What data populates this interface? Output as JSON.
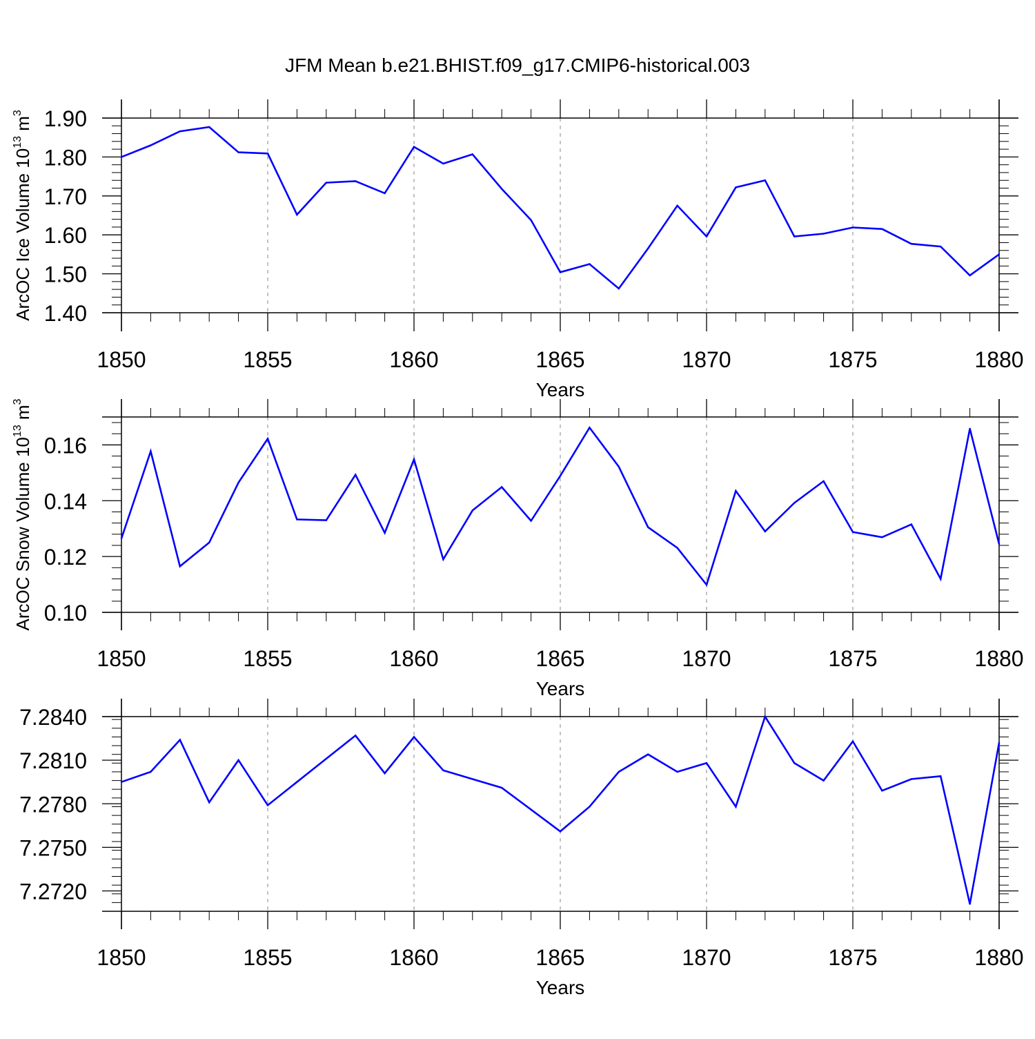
{
  "figure": {
    "title": "JFM Mean b.e21.BHIST.f09_g17.CMIP6-historical.003"
  },
  "colors": {
    "line": "#0000ff",
    "axis": "#000000",
    "grid": "#999999"
  },
  "chart_data": [
    {
      "type": "line",
      "title": "JFM Mean b.e21.BHIST.f09_g17.CMIP6-historical.003",
      "xlabel": "Years",
      "ylabel_main": "ArcOC Ice Volume 10",
      "ylabel_sup": "13",
      "ylabel_unit": " m",
      "ylabel_unit_sup": "3",
      "xlim": [
        1850,
        1880
      ],
      "ylim": [
        1.4,
        1.9
      ],
      "x_ticks": [
        1850,
        1855,
        1860,
        1865,
        1870,
        1875,
        1880
      ],
      "x_tick_labels": [
        "1850",
        "1855",
        "1860",
        "1865",
        "1870",
        "1875",
        "1880"
      ],
      "y_ticks": [
        1.4,
        1.5,
        1.6,
        1.7,
        1.8,
        1.9
      ],
      "y_tick_labels": [
        "1.40",
        "1.50",
        "1.60",
        "1.70",
        "1.80",
        "1.90"
      ],
      "y_minor_step": 0.02,
      "grid": "vertical dashed",
      "x": [
        1850,
        1851,
        1852,
        1853,
        1854,
        1855,
        1856,
        1857,
        1858,
        1859,
        1860,
        1861,
        1862,
        1863,
        1864,
        1865,
        1866,
        1867,
        1868,
        1869,
        1870,
        1871,
        1872,
        1873,
        1874,
        1875,
        1876,
        1877,
        1878,
        1879,
        1880
      ],
      "values": [
        1.8,
        1.83,
        1.866,
        1.877,
        1.812,
        1.809,
        1.652,
        1.734,
        1.738,
        1.707,
        1.826,
        1.783,
        1.807,
        1.718,
        1.638,
        1.504,
        1.525,
        1.462,
        1.565,
        1.675,
        1.596,
        1.722,
        1.74,
        1.596,
        1.603,
        1.619,
        1.615,
        1.577,
        1.57,
        1.496,
        1.55
      ]
    },
    {
      "type": "line",
      "xlabel": "Years",
      "ylabel_main": "ArcOC Snow Volume 10",
      "ylabel_sup": "13",
      "ylabel_unit": " m",
      "ylabel_unit_sup": "3",
      "xlim": [
        1850,
        1880
      ],
      "ylim": [
        0.1,
        0.17
      ],
      "x_ticks": [
        1850,
        1855,
        1860,
        1865,
        1870,
        1875,
        1880
      ],
      "x_tick_labels": [
        "1850",
        "1855",
        "1860",
        "1865",
        "1870",
        "1875",
        "1880"
      ],
      "y_ticks": [
        0.1,
        0.12,
        0.14,
        0.16
      ],
      "y_tick_labels": [
        "0.10",
        "0.12",
        "0.14",
        "0.16"
      ],
      "y_minor_step": 0.004,
      "grid": "vertical dashed",
      "x": [
        1850,
        1851,
        1852,
        1853,
        1854,
        1855,
        1856,
        1857,
        1858,
        1859,
        1860,
        1861,
        1862,
        1863,
        1864,
        1865,
        1866,
        1867,
        1868,
        1869,
        1870,
        1871,
        1872,
        1873,
        1874,
        1875,
        1876,
        1877,
        1878,
        1879,
        1880
      ],
      "values": [
        0.1265,
        0.1577,
        0.1165,
        0.125,
        0.1465,
        0.1622,
        0.1333,
        0.133,
        0.1493,
        0.1285,
        0.1548,
        0.119,
        0.1365,
        0.1449,
        0.1328,
        0.1489,
        0.1662,
        0.1522,
        0.1305,
        0.1231,
        0.1099,
        0.1435,
        0.129,
        0.1392,
        0.147,
        0.1288,
        0.1269,
        0.1315,
        0.112,
        0.1658,
        0.1245
      ]
    },
    {
      "type": "line",
      "xlabel": "Years",
      "xlim": [
        1850,
        1880
      ],
      "ylim": [
        7.2706,
        7.284
      ],
      "x_ticks": [
        1850,
        1855,
        1860,
        1865,
        1870,
        1875,
        1880
      ],
      "x_tick_labels": [
        "1850",
        "1855",
        "1860",
        "1865",
        "1870",
        "1875",
        "1880"
      ],
      "y_ticks": [
        7.272,
        7.275,
        7.278,
        7.281,
        7.284
      ],
      "y_tick_labels": [
        "7.2720",
        "7.2750",
        "7.2780",
        "7.2810",
        "7.2840"
      ],
      "y_minor_step": 0.0006,
      "grid": "vertical dashed",
      "x": [
        1850,
        1851,
        1852,
        1853,
        1854,
        1855,
        1856,
        1857,
        1858,
        1859,
        1860,
        1861,
        1862,
        1863,
        1864,
        1865,
        1866,
        1867,
        1868,
        1869,
        1870,
        1871,
        1872,
        1873,
        1874,
        1875,
        1876,
        1877,
        1878,
        1879,
        1880
      ],
      "values": [
        7.2795,
        7.2802,
        7.2824,
        7.2781,
        7.281,
        7.2779,
        7.2795,
        7.2811,
        7.2827,
        7.2801,
        7.2826,
        7.2803,
        7.2797,
        7.2791,
        7.2776,
        7.2761,
        7.2778,
        7.2802,
        7.2814,
        7.2802,
        7.2808,
        7.2778,
        7.284,
        7.2808,
        7.2796,
        7.2823,
        7.2789,
        7.2797,
        7.2799,
        7.2711,
        7.2822
      ]
    }
  ]
}
